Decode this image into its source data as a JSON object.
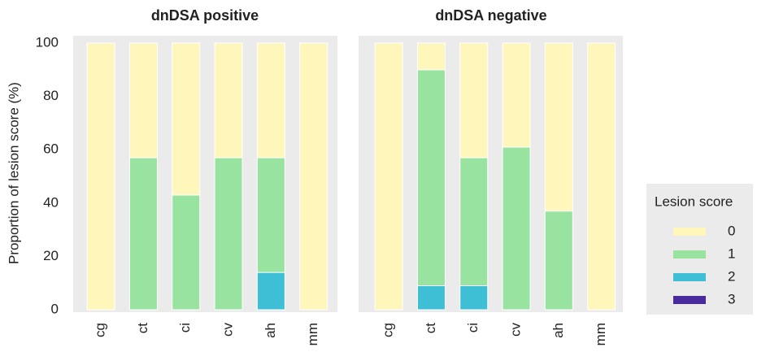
{
  "chart_data": [
    {
      "type": "stacked_bar",
      "title": "dnDSA positive",
      "y_label": "Proportion of lesion score (%)",
      "categories": [
        "cg",
        "ct",
        "ci",
        "cv",
        "ah",
        "mm"
      ],
      "series": [
        {
          "color": "#fff6bb",
          "values": [
            100,
            43,
            57,
            43,
            43,
            100
          ]
        },
        {
          "color": "#98e3a0",
          "values": [
            0,
            57,
            43,
            57,
            43,
            0
          ]
        },
        {
          "color": "#3ebfd6",
          "values": [
            0,
            0,
            0,
            0,
            14,
            0
          ]
        },
        {
          "color": "#4a2b9e",
          "values": [
            0,
            0,
            0,
            0,
            0,
            0
          ]
        }
      ],
      "ylim": [
        0,
        100
      ],
      "yticks": [
        0,
        20,
        40,
        60,
        80,
        100
      ]
    },
    {
      "type": "stacked_bar",
      "title": "dnDSA negative",
      "legend_title": "Lesion score",
      "categories": [
        "cg",
        "ct",
        "ci",
        "cv",
        "ah",
        "mm"
      ],
      "series": [
        {
          "name": "0",
          "color": "#fff6bb",
          "values": [
            100,
            10,
            43,
            39,
            63,
            100
          ]
        },
        {
          "name": "1",
          "color": "#98e3a0",
          "values": [
            0,
            81,
            48,
            61,
            37,
            0
          ]
        },
        {
          "name": "2",
          "color": "#3ebfd6",
          "values": [
            0,
            9,
            9,
            0,
            0,
            0
          ]
        },
        {
          "name": "3",
          "color": "#4a2b9e",
          "values": [
            0,
            0,
            0,
            0,
            0,
            0
          ]
        }
      ],
      "ylim": [
        0,
        100
      ]
    }
  ]
}
